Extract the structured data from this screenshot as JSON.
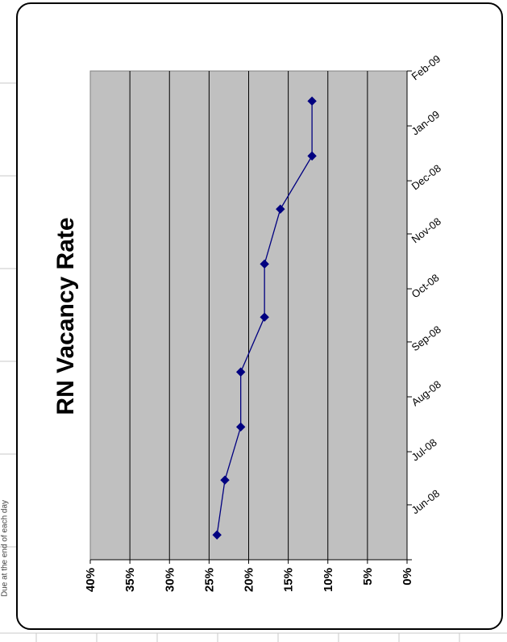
{
  "sheet": {
    "side_note": "Due at the end of each day"
  },
  "chart_data": {
    "type": "line",
    "title": "RN Vacancy Rate",
    "orientation": "rotated-90-ccw",
    "x_ticks": [
      "Jun-08",
      "Jul-08",
      "Aug-08",
      "Sep-08",
      "Oct-08",
      "Nov-08",
      "Dec-08",
      "Jan-09",
      "Feb-09"
    ],
    "x": [
      "2008-05-15",
      "2008-06-15",
      "2008-07-15",
      "2008-08-15",
      "2008-09-15",
      "2008-10-15",
      "2008-11-15",
      "2008-12-15",
      "2009-01-15"
    ],
    "xlim": [
      "2008-05-01",
      "2009-02-01"
    ],
    "series": [
      {
        "values": [
          24,
          23,
          21,
          21,
          18,
          18,
          16,
          12,
          12
        ],
        "color": "#000080",
        "marker": "diamond"
      }
    ],
    "y_ticks": [
      "40%",
      "35%",
      "30%",
      "25%",
      "20%",
      "15%",
      "10%",
      "5%",
      "0%"
    ],
    "ylim": [
      0,
      40
    ],
    "grid": true,
    "plot_bg": "#c0c0c0",
    "legend": "none"
  }
}
